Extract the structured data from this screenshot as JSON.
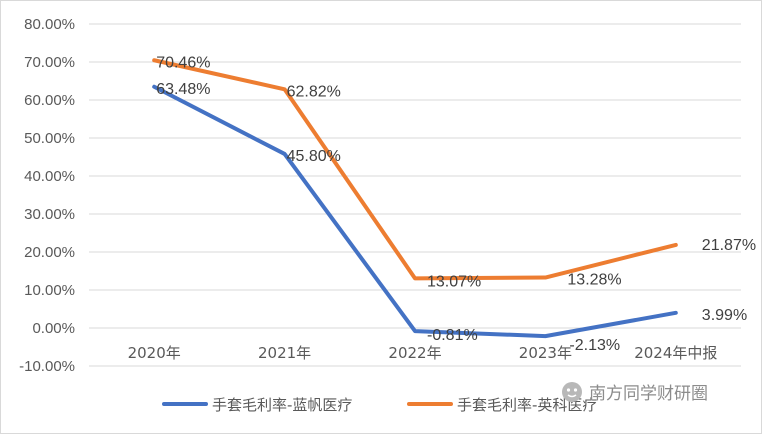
{
  "chart_data": {
    "type": "line",
    "title": "",
    "xlabel": "",
    "ylabel": "",
    "categories": [
      "2020年",
      "2021年",
      "2022年",
      "2023年",
      "2024年中报"
    ],
    "ylim": [
      -10,
      80
    ],
    "yticks": [
      -10,
      0,
      10,
      20,
      30,
      40,
      50,
      60,
      70,
      80
    ],
    "ytick_labels": [
      "-10.00%",
      "0.00%",
      "10.00%",
      "20.00%",
      "30.00%",
      "40.00%",
      "50.00%",
      "60.00%",
      "70.00%",
      "80.00%"
    ],
    "grid": true,
    "legend_position": "bottom",
    "series": [
      {
        "name": "手套毛利率-蓝帆医疗",
        "color": "#4472C4",
        "values": [
          63.48,
          45.8,
          -0.81,
          -2.13,
          3.99
        ],
        "labels": [
          "63.48%",
          "45.80%",
          "-0.81%",
          "-2.13%",
          "3.99%"
        ]
      },
      {
        "name": "手套毛利率-英科医疗",
        "color": "#ED7D31",
        "values": [
          70.46,
          62.82,
          13.07,
          13.28,
          21.87
        ],
        "labels": [
          "70.46%",
          "62.82%",
          "13.07%",
          "13.28%",
          "21.87%"
        ]
      }
    ]
  },
  "watermark": {
    "text": "南方同学财研圈",
    "icon": "wechat-icon"
  }
}
